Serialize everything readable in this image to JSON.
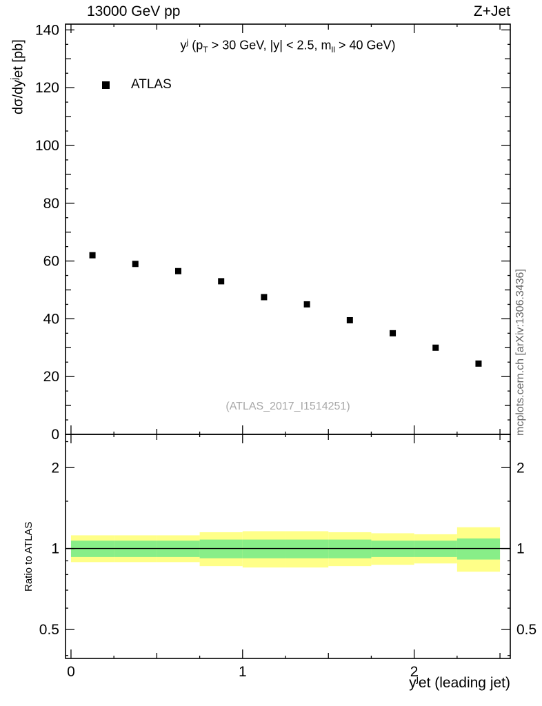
{
  "header": {
    "left": "13000 GeV pp",
    "right": "Z+Jet"
  },
  "top_panel": {
    "ylabel": {
      "pre": "dσ/dy",
      "sup": "j",
      "post": "et [pb]"
    },
    "annotation": {
      "y": "y",
      "sup": "j",
      "p1": " (p",
      "subT": "T",
      "mid": " > 30 GeV,  |y| < 2.5,  m",
      "subll": "ll",
      "end": " > 40 GeV)"
    },
    "legend_label": "ATLAS",
    "watermark": "(ATLAS_2017_I1514251)"
  },
  "bottom_panel": {
    "ylabel": "Ratio to ATLAS"
  },
  "xaxis_label": {
    "pre": "y",
    "sup": "j",
    "post": "et (leading jet)"
  },
  "side_note": "mcplots.cern.ch [arXiv:1306.3436]",
  "chart_data": {
    "type": "scatter",
    "title_left": "13000 GeV pp",
    "title_right": "Z+Jet",
    "xlabel": "y^jet (leading jet)",
    "xlim": [
      -0.032,
      2.56
    ],
    "xticks": [
      0,
      1,
      2
    ],
    "x_minor_step": 0.25,
    "top": {
      "ylabel": "dσ/dy^jet [pb]",
      "ylim": [
        0,
        142
      ],
      "yticks": [
        0,
        20,
        40,
        60,
        80,
        100,
        120,
        140
      ],
      "series": [
        {
          "name": "ATLAS",
          "marker": "filled-square",
          "color": "#000000",
          "x": [
            0.125,
            0.375,
            0.625,
            0.875,
            1.125,
            1.375,
            1.625,
            1.875,
            2.125,
            2.375
          ],
          "y": [
            62,
            59,
            56.5,
            53,
            47.5,
            45,
            39.5,
            35,
            30,
            24.5
          ]
        }
      ],
      "annotation": "y^j (p_T > 30 GeV, |y| < 2.5, m_ll > 40 GeV)",
      "watermark": "(ATLAS_2017_I1514251)"
    },
    "bottom": {
      "ylabel": "Ratio to ATLAS",
      "yscale": "log",
      "ylim": [
        0.39,
        2.66
      ],
      "yticks": [
        0.5,
        1,
        2
      ],
      "y_minor_ticks": [
        0.4,
        0.6,
        0.7,
        0.8,
        0.9,
        1.5,
        2.5
      ],
      "reference_line": 1,
      "band_bin_edges": [
        0,
        0.25,
        0.5,
        0.75,
        1.0,
        1.25,
        1.5,
        1.75,
        2.0,
        2.25,
        2.5
      ],
      "yellow_band": {
        "color": "#ffff88",
        "lo": [
          0.89,
          0.89,
          0.89,
          0.86,
          0.85,
          0.85,
          0.86,
          0.87,
          0.88,
          0.82
        ],
        "hi": [
          1.12,
          1.12,
          1.12,
          1.15,
          1.16,
          1.16,
          1.15,
          1.14,
          1.13,
          1.2
        ]
      },
      "green_band": {
        "color": "#88ee88",
        "lo": [
          0.93,
          0.93,
          0.93,
          0.92,
          0.92,
          0.92,
          0.92,
          0.93,
          0.93,
          0.91
        ],
        "hi": [
          1.07,
          1.07,
          1.07,
          1.08,
          1.08,
          1.08,
          1.08,
          1.07,
          1.07,
          1.09
        ]
      }
    }
  }
}
